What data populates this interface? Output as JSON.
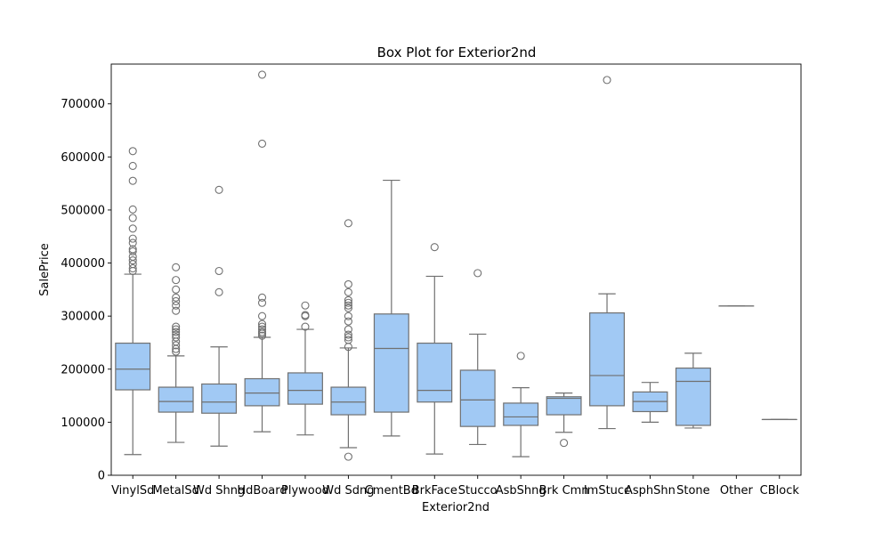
{
  "chart_data": {
    "type": "box",
    "title": "Box Plot for Exterior2nd",
    "xlabel": "Exterior2nd",
    "ylabel": "SalePrice",
    "ylim": [
      0,
      775000
    ],
    "yticks": [
      0,
      100000,
      200000,
      300000,
      400000,
      500000,
      600000,
      700000
    ],
    "ytick_labels": [
      "0",
      "100000",
      "200000",
      "300000",
      "400000",
      "500000",
      "600000",
      "700000"
    ],
    "box_color": "#a1c9f4",
    "line_color": "#707070",
    "categories": [
      "VinylSd",
      "MetalSd",
      "Wd Shng",
      "HdBoard",
      "Plywood",
      "Wd Sdng",
      "CmentBd",
      "BrkFace",
      "Stucco",
      "AsbShng",
      "Brk Cmn",
      "ImStucc",
      "AsphShn",
      "Stone",
      "Other",
      "CBlock"
    ],
    "boxes": [
      {
        "whisker_low": 39000,
        "q1": 161000,
        "median": 200000,
        "q3": 249000,
        "whisker_high": 379000,
        "outliers": [
          385000,
          390000,
          398000,
          405000,
          412000,
          422000,
          426000,
          438000,
          446000,
          465000,
          485000,
          501000,
          555000,
          583000,
          611000
        ]
      },
      {
        "whisker_low": 62000,
        "q1": 119000,
        "median": 139000,
        "q3": 166000,
        "whisker_high": 225000,
        "outliers": [
          233000,
          238000,
          245000,
          252000,
          260000,
          265000,
          270000,
          275000,
          280000,
          310000,
          320000,
          328000,
          335000,
          350000,
          368000,
          392000
        ]
      },
      {
        "whisker_low": 55000,
        "q1": 117000,
        "median": 138000,
        "q3": 172000,
        "whisker_high": 242000,
        "outliers": [
          345000,
          385000,
          538000
        ]
      },
      {
        "whisker_low": 82000,
        "q1": 131000,
        "median": 155000,
        "q3": 182000,
        "whisker_high": 260000,
        "outliers": [
          263000,
          267000,
          270000,
          275000,
          280000,
          285000,
          300000,
          325000,
          335000,
          625000,
          755000
        ]
      },
      {
        "whisker_low": 76000,
        "q1": 134000,
        "median": 160000,
        "q3": 193000,
        "whisker_high": 275000,
        "outliers": [
          280000,
          300000,
          302000,
          320000
        ]
      },
      {
        "whisker_low": 52000,
        "q1": 114000,
        "median": 138000,
        "q3": 166000,
        "whisker_high": 240000,
        "outliers": [
          35000,
          242000,
          255000,
          260000,
          265000,
          275000,
          290000,
          300000,
          315000,
          320000,
          325000,
          330000,
          345000,
          360000,
          475000
        ]
      },
      {
        "whisker_low": 74000,
        "q1": 119000,
        "median": 239000,
        "q3": 304000,
        "whisker_high": 556000,
        "outliers": []
      },
      {
        "whisker_low": 40000,
        "q1": 138000,
        "median": 160000,
        "q3": 249000,
        "whisker_high": 375000,
        "outliers": [
          430000
        ]
      },
      {
        "whisker_low": 58000,
        "q1": 92000,
        "median": 142000,
        "q3": 198000,
        "whisker_high": 266000,
        "outliers": [
          381000
        ]
      },
      {
        "whisker_low": 35000,
        "q1": 94000,
        "median": 110000,
        "q3": 136000,
        "whisker_high": 165000,
        "outliers": [
          225000
        ]
      },
      {
        "whisker_low": 81000,
        "q1": 114000,
        "median": 145000,
        "q3": 148000,
        "whisker_high": 155000,
        "outliers": [
          61000
        ]
      },
      {
        "whisker_low": 88000,
        "q1": 131000,
        "median": 188000,
        "q3": 306000,
        "whisker_high": 342000,
        "outliers": [
          745000
        ]
      },
      {
        "whisker_low": 100000,
        "q1": 120000,
        "median": 139000,
        "q3": 157000,
        "whisker_high": 175000,
        "outliers": []
      },
      {
        "whisker_low": 89000,
        "q1": 94000,
        "median": 177000,
        "q3": 202000,
        "whisker_high": 230000,
        "outliers": []
      },
      {
        "whisker_low": 319000,
        "q1": 319000,
        "median": 319000,
        "q3": 319000,
        "whisker_high": 319000,
        "outliers": []
      },
      {
        "whisker_low": 105000,
        "q1": 105000,
        "median": 105000,
        "q3": 105000,
        "whisker_high": 105000,
        "outliers": []
      }
    ]
  }
}
